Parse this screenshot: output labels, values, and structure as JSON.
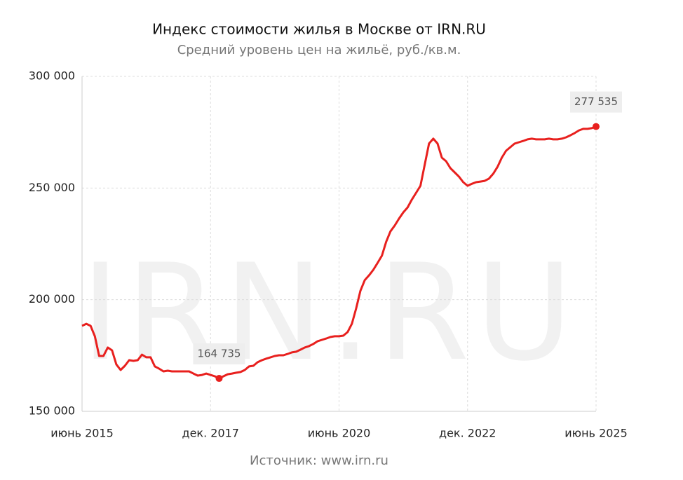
{
  "chart_data": {
    "type": "line",
    "title": "Индекс стоимости жилья в Москве от IRN.RU",
    "subtitle": "Средний уровень цен на жильё, руб./кв.м.",
    "watermark": "IRN.RU",
    "source": "Источник: www.irn.ru",
    "categories": [
      "июнь 2015",
      null,
      null,
      null,
      null,
      null,
      null,
      null,
      null,
      null,
      null,
      null,
      null,
      null,
      null,
      null,
      null,
      null,
      null,
      null,
      null,
      null,
      null,
      null,
      null,
      null,
      null,
      null,
      null,
      null,
      "дек. 2017",
      null,
      null,
      null,
      null,
      null,
      null,
      null,
      null,
      null,
      null,
      null,
      null,
      null,
      null,
      null,
      null,
      null,
      null,
      null,
      null,
      null,
      null,
      null,
      null,
      null,
      null,
      null,
      null,
      null,
      "июнь 2020",
      null,
      null,
      null,
      null,
      null,
      null,
      null,
      null,
      null,
      null,
      null,
      null,
      null,
      null,
      null,
      null,
      null,
      null,
      null,
      null,
      null,
      null,
      null,
      null,
      null,
      null,
      null,
      null,
      null,
      "дек. 2022",
      null,
      null,
      null,
      null,
      null,
      null,
      null,
      null,
      null,
      null,
      null,
      null,
      null,
      null,
      null,
      null,
      null,
      null,
      null,
      null,
      null,
      null,
      null,
      null,
      null,
      null,
      null,
      null,
      null,
      "июнь 2025"
    ],
    "series": [
      {
        "name": "Индекс стоимости жилья",
        "color": "#e8201e",
        "values": [
          188300,
          189200,
          188300,
          183600,
          174800,
          174800,
          178600,
          177300,
          171000,
          168500,
          170400,
          172900,
          172600,
          172900,
          175400,
          174200,
          174200,
          170100,
          169100,
          167900,
          168200,
          167900,
          167900,
          167900,
          167900,
          167900,
          166900,
          166000,
          166300,
          166900,
          166300,
          165700,
          164735,
          165700,
          166600,
          166900,
          167300,
          167600,
          168500,
          170100,
          170400,
          172000,
          172900,
          173600,
          174200,
          174800,
          175100,
          175100,
          175700,
          176400,
          176700,
          177600,
          178600,
          179200,
          180200,
          181400,
          182000,
          182600,
          183300,
          183600,
          183600,
          183900,
          185500,
          189200,
          196100,
          204000,
          208700,
          210900,
          213400,
          216500,
          219700,
          225900,
          230600,
          233200,
          236300,
          239100,
          241300,
          244800,
          247900,
          251000,
          260500,
          269900,
          272100,
          269900,
          263600,
          262000,
          258900,
          257000,
          255100,
          252600,
          251000,
          251900,
          252600,
          252900,
          253200,
          254200,
          256400,
          259500,
          263600,
          266700,
          268300,
          269900,
          270500,
          271100,
          271800,
          272100,
          271800,
          271800,
          271800,
          272100,
          271800,
          271800,
          272100,
          272700,
          273600,
          274600,
          275800,
          276500,
          276500,
          276800,
          277535
        ],
        "value_labels": [
          null,
          null,
          null,
          null,
          null,
          null,
          null,
          null,
          null,
          null,
          null,
          null,
          null,
          null,
          null,
          null,
          null,
          null,
          null,
          null,
          null,
          null,
          null,
          null,
          null,
          null,
          null,
          null,
          null,
          null,
          null,
          null,
          "164 735",
          null,
          null,
          null,
          null,
          null,
          null,
          null,
          null,
          null,
          null,
          null,
          null,
          null,
          null,
          null,
          null,
          null,
          null,
          null,
          null,
          null,
          null,
          null,
          null,
          null,
          null,
          null,
          null,
          null,
          null,
          null,
          null,
          null,
          null,
          null,
          null,
          null,
          null,
          null,
          null,
          null,
          null,
          null,
          null,
          null,
          null,
          null,
          null,
          null,
          null,
          null,
          null,
          null,
          null,
          null,
          null,
          null,
          null,
          null,
          null,
          null,
          null,
          null,
          null,
          null,
          null,
          null,
          null,
          null,
          null,
          null,
          null,
          null,
          null,
          null,
          null,
          null,
          null,
          null,
          null,
          null,
          null,
          null,
          null,
          null,
          null,
          null,
          "277 535"
        ]
      }
    ],
    "ylim": [
      150000,
      300000
    ],
    "yticks": [
      {
        "value": 150000,
        "label": "150 000"
      },
      {
        "value": 200000,
        "label": "200 000"
      },
      {
        "value": 250000,
        "label": "250 000"
      },
      {
        "value": 300000,
        "label": "300 000"
      }
    ],
    "grid": true
  }
}
